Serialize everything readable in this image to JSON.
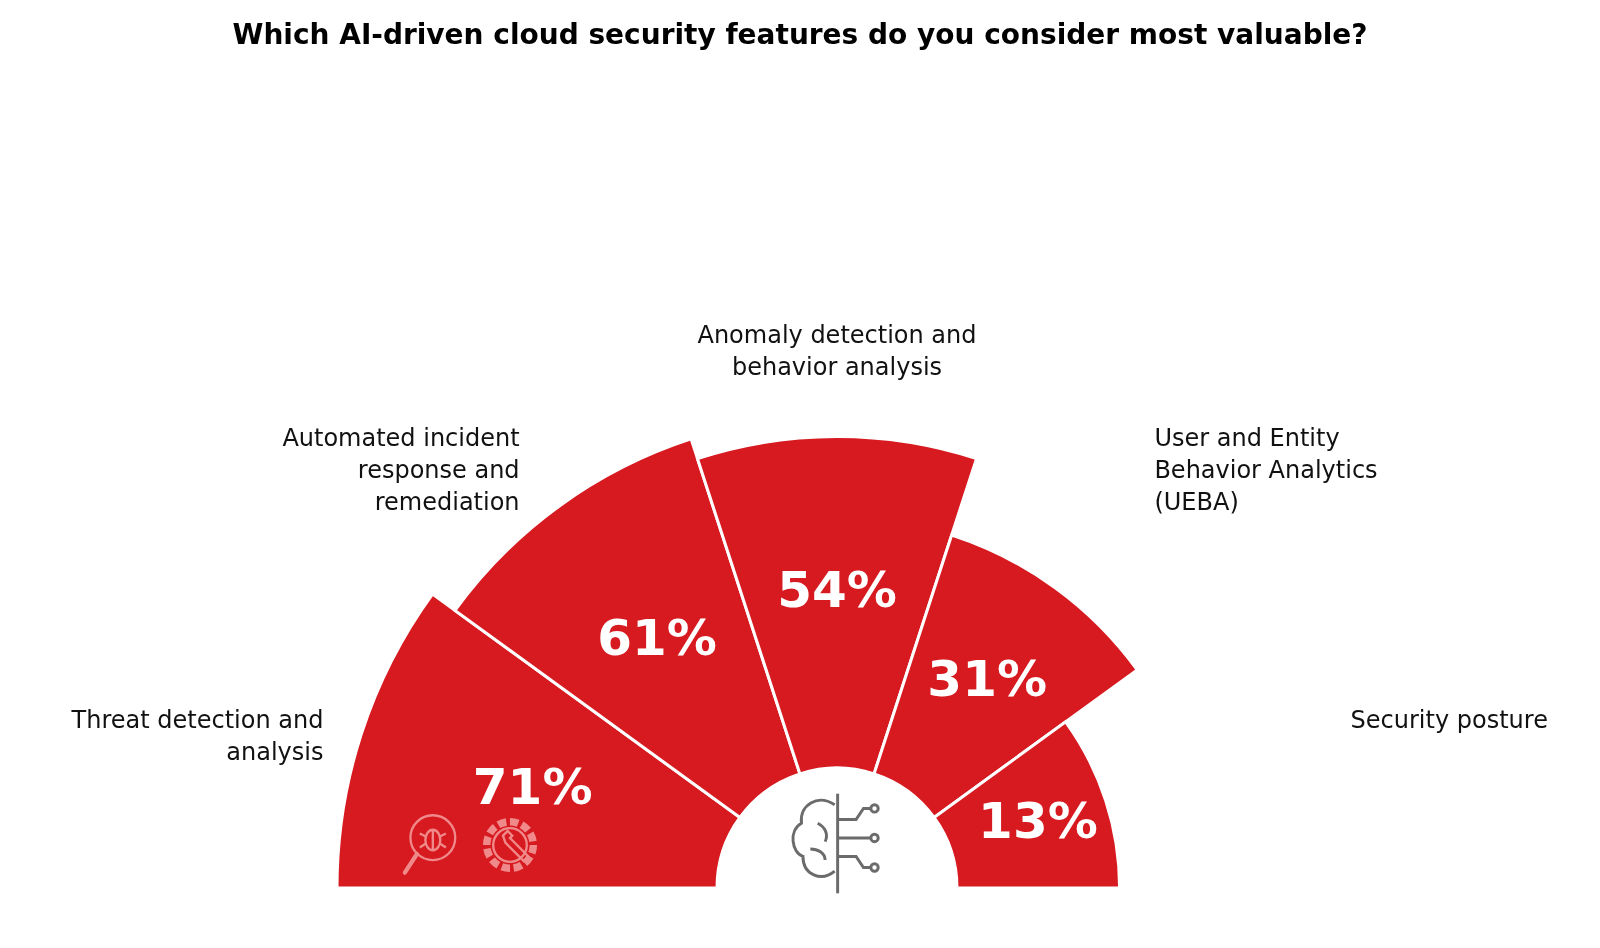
{
  "chart_data": {
    "type": "other",
    "title": "Which AI-driven cloud security features do you consider most valuable?",
    "categories": [
      "Threat detection and analysis",
      "Automated incident response and remediation",
      "Anomaly detection and behavior analysis",
      "User and Entity Behavior Analytics (UEBA)",
      "Security posture"
    ],
    "values": [
      71,
      61,
      54,
      31,
      13
    ],
    "color": "#d71920",
    "data_labels": true,
    "value_labels": [
      "71%",
      "61%",
      "54%",
      "31%",
      "13%"
    ]
  }
}
